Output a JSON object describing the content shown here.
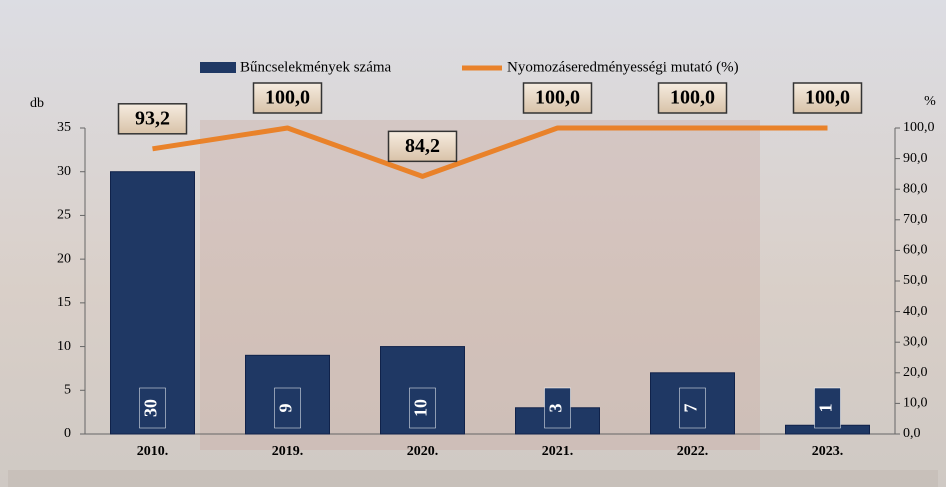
{
  "chart_data": {
    "type": "bar-line",
    "categories": [
      "2010.",
      "2019.",
      "2020.",
      "2021.",
      "2022.",
      "2023."
    ],
    "y_label": "db",
    "y2_label": "%",
    "series": [
      {
        "name": "Bűncselekmények száma",
        "type": "bar",
        "color": "#1f3864",
        "values": [
          30,
          9,
          10,
          3,
          7,
          1
        ]
      },
      {
        "name": "Nyomozáseredményességi mutató (%)",
        "type": "line",
        "axis": "y2",
        "color": "#e9822a",
        "values": [
          93.2,
          100,
          84.2,
          100,
          100,
          100
        ],
        "value_labels": [
          "93,2",
          "100,0",
          "84,2",
          "100,0",
          "100,0",
          "100,0"
        ]
      }
    ],
    "ylim": [
      0,
      35
    ],
    "yticks": [
      0,
      5,
      10,
      15,
      20,
      25,
      30,
      35
    ],
    "y2lim": [
      0,
      100
    ],
    "y2ticks": [
      {
        "value": 0,
        "label": "0,0"
      },
      {
        "value": 10,
        "label": "10,0"
      },
      {
        "value": 20,
        "label": "20,0"
      },
      {
        "value": 30,
        "label": "30,0"
      },
      {
        "value": 40,
        "label": "40,0"
      },
      {
        "value": 50,
        "label": "50,0"
      },
      {
        "value": 60,
        "label": "60,0"
      },
      {
        "value": 70,
        "label": "70,0"
      },
      {
        "value": 80,
        "label": "80,0"
      },
      {
        "value": 90,
        "label": "90,0"
      },
      {
        "value": 100,
        "label": "100,0"
      }
    ]
  }
}
